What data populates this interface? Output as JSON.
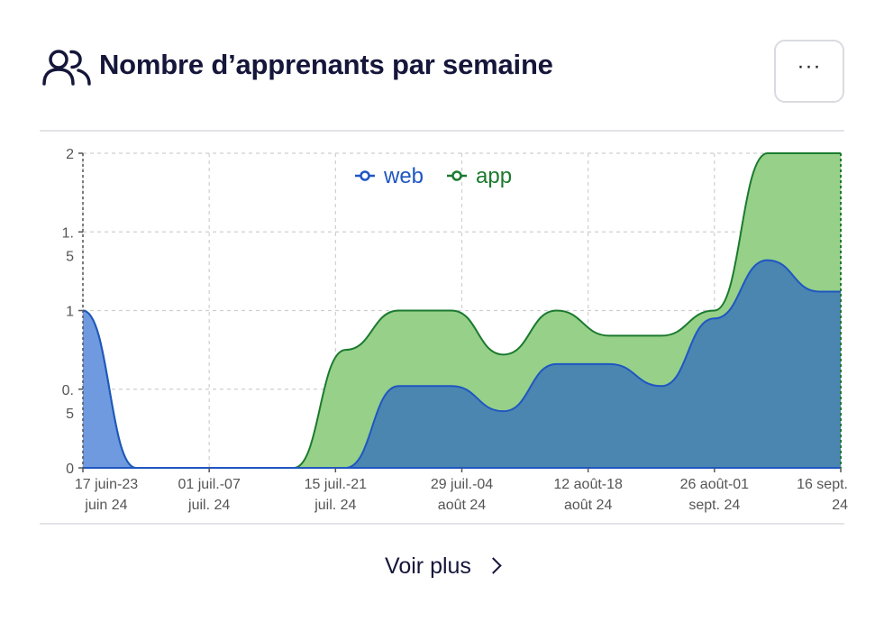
{
  "header": {
    "title": "Nombre d’apprenants par semaine",
    "more_label": "···"
  },
  "footer": {
    "link_label": "Voir plus"
  },
  "colors": {
    "web": "#1f56c2",
    "web_fill": "#6f9ae0",
    "app": "#1b7a2e",
    "app_fill": "#96d089",
    "stacked_fill": "#4a86b0"
  },
  "chart_data": {
    "type": "area",
    "stacked": true,
    "title": "Nombre d’apprenants par semaine",
    "xlabel": "",
    "ylabel": "",
    "ylim": [
      0,
      2
    ],
    "yticks": [
      {
        "value": 0,
        "lines": [
          "0"
        ]
      },
      {
        "value": 0.5,
        "lines": [
          "0.",
          "5"
        ]
      },
      {
        "value": 1,
        "lines": [
          "1"
        ]
      },
      {
        "value": 1.5,
        "lines": [
          "1.",
          "5"
        ]
      },
      {
        "value": 2,
        "lines": [
          "2"
        ]
      }
    ],
    "categories": [
      [
        "17 juin-23",
        "juin 24"
      ],
      [
        "01 juil.-07",
        "juil. 24"
      ],
      [
        "15 juil.-21",
        "juil. 24"
      ],
      [
        "29 juil.-04",
        "août 24"
      ],
      [
        "12 août-18",
        "août 24"
      ],
      [
        "26 août-01",
        "sept. 24"
      ],
      [
        "16 sept.",
        "24"
      ]
    ],
    "x": [
      0,
      0.42,
      0.83,
      1.25,
      1.67,
      2.08,
      2.5,
      2.92,
      3.33,
      3.75,
      4.17,
      4.58,
      5,
      5.42,
      5.83,
      6
    ],
    "series": [
      {
        "name": "web",
        "values": [
          1,
          0,
          0,
          0,
          0,
          0,
          0.52,
          0.52,
          0.36,
          0.66,
          0.66,
          0.52,
          0.95,
          1.32,
          1.12,
          1.12
        ]
      },
      {
        "name": "app",
        "values": [
          0,
          0,
          0,
          0,
          0,
          0.75,
          0.48,
          0.48,
          0.36,
          0.34,
          0.18,
          0.32,
          0.05,
          0.68,
          0.88,
          0.88
        ]
      }
    ],
    "legend_position": "top-center",
    "grid": true
  }
}
